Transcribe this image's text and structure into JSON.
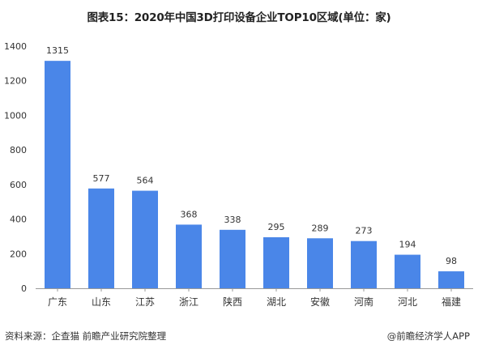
{
  "chart_data": {
    "type": "bar",
    "title": "图表15：2020年中国3D打印设备企业TOP10区域(单位：家)",
    "xlabel": "",
    "ylabel": "",
    "categories": [
      "广东",
      "山东",
      "江苏",
      "浙江",
      "陕西",
      "湖北",
      "安徽",
      "河南",
      "河北",
      "福建"
    ],
    "values": [
      1315,
      577,
      564,
      368,
      338,
      295,
      289,
      273,
      194,
      98
    ],
    "ylim": [
      0,
      1400
    ],
    "yticks": [
      0,
      200,
      400,
      600,
      800,
      1000,
      1200,
      1400
    ],
    "grid": false,
    "legend": "none",
    "bar_color": "#4a86e8",
    "axis_color": "#999999",
    "label_color": "#333333"
  },
  "footer": {
    "source": "资料来源：企查猫 前瞻产业研究院整理",
    "brand": "@前瞻经济学人APP"
  }
}
